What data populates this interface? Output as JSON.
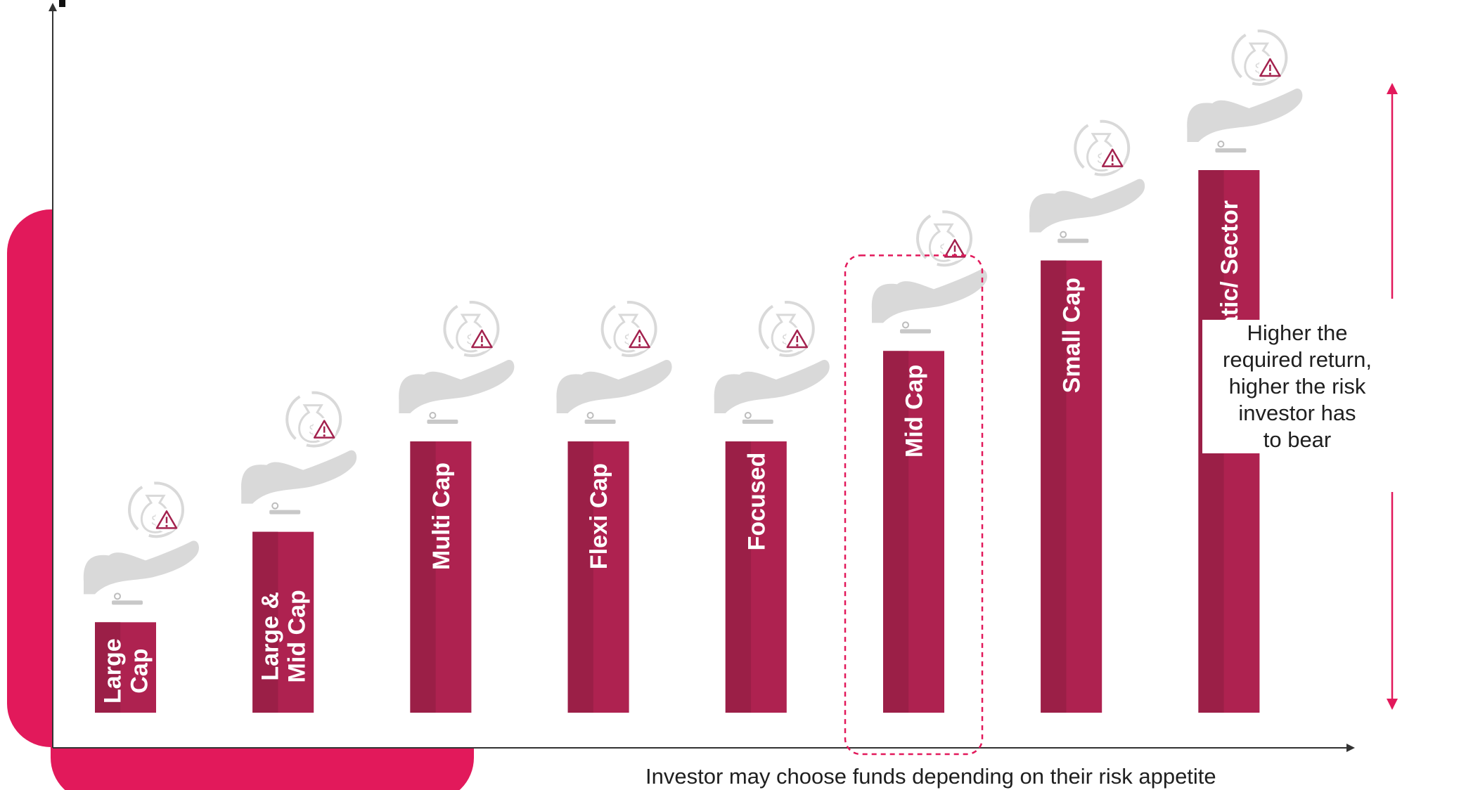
{
  "colors": {
    "accent": "#E2195B",
    "bar_dark": "#9B1F47",
    "bar_light": "#AE2250",
    "highlight_border": "#E2195B",
    "icon_grey": "#D9D9D9"
  },
  "chart_data": {
    "type": "bar",
    "title": "",
    "xlabel": "Investor may choose funds depending on their risk appetite",
    "ylabel": "",
    "categories": [
      "Large Cap",
      "Large & Mid Cap",
      "Multi Cap",
      "Flexi Cap",
      "Focused",
      "Mid Cap",
      "Small Cap",
      "Thematic/ Sector"
    ],
    "category_lines": [
      [
        "Large",
        "Cap"
      ],
      [
        "Large &",
        "Mid Cap"
      ],
      [
        "Multi Cap"
      ],
      [
        "Flexi Cap"
      ],
      [
        "Focused"
      ],
      [
        "Mid Cap"
      ],
      [
        "Small Cap"
      ],
      [
        "Thematic/ Sector"
      ]
    ],
    "values": [
      1,
      2,
      3,
      3,
      3,
      4,
      5,
      6
    ],
    "ylim": [
      0,
      6.7
    ],
    "value_note": "relative risk level (ordinal, no numeric axis shown)",
    "highlighted_category": "Mid Cap",
    "icon": "money-bag-warning-hand-icon",
    "grid": false,
    "legend": "none"
  },
  "annotation": {
    "lines": [
      "Higher the",
      "required return,",
      "higher the risk",
      "investor has",
      "to bear"
    ],
    "arrow": "double-headed-vertical-arrow"
  }
}
